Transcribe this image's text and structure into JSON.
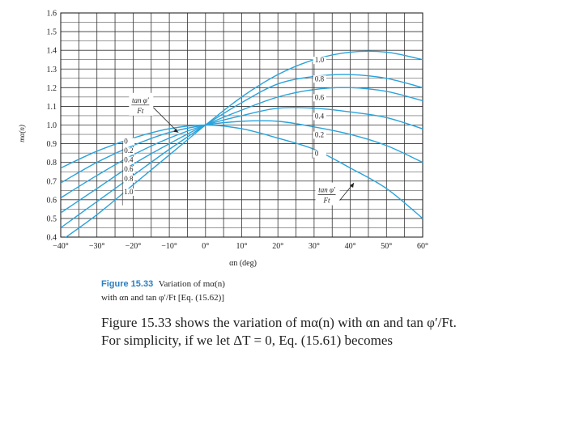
{
  "chart_data": {
    "type": "line",
    "xlabel": "αn (deg)",
    "ylabel": "mα(n)",
    "xlim": [
      -40,
      60
    ],
    "ylim": [
      0.4,
      1.6
    ],
    "x_ticks": [
      -40,
      -30,
      -20,
      -10,
      0,
      10,
      20,
      30,
      40,
      50,
      60
    ],
    "x_tick_labels": [
      "−40°",
      "−30°",
      "−20°",
      "−10°",
      "0°",
      "10°",
      "20°",
      "30°",
      "40°",
      "50°",
      "60°"
    ],
    "y_ticks": [
      0.4,
      0.5,
      0.6,
      0.7,
      0.8,
      0.9,
      1.0,
      1.1,
      1.2,
      1.3,
      1.4,
      1.5,
      1.6
    ],
    "y_tick_labels": [
      "0.4",
      "0.5",
      "0.6",
      "0.7",
      "0.8",
      "0.9",
      "1.0",
      "1.1",
      "1.2",
      "1.3",
      "1.4",
      "1.5",
      "1.6"
    ],
    "grid": true,
    "line_color": "#29a3dc",
    "x": [
      -40,
      -30,
      -20,
      -10,
      0,
      10,
      20,
      30,
      40,
      50,
      60
    ],
    "series": [
      {
        "name": "0",
        "values": [
          0.77,
          0.86,
          0.93,
          0.98,
          1.0,
          0.98,
          0.93,
          0.87,
          0.77,
          0.66,
          0.5
        ]
      },
      {
        "name": "0.2",
        "values": [
          0.69,
          0.8,
          0.89,
          0.96,
          1.0,
          1.02,
          1.02,
          0.99,
          0.95,
          0.89,
          0.8
        ]
      },
      {
        "name": "0.4",
        "values": [
          0.61,
          0.73,
          0.84,
          0.93,
          1.0,
          1.05,
          1.09,
          1.09,
          1.07,
          1.04,
          0.98
        ]
      },
      {
        "name": "0.6",
        "values": [
          0.53,
          0.66,
          0.79,
          0.9,
          1.0,
          1.08,
          1.15,
          1.19,
          1.2,
          1.18,
          1.13
        ]
      },
      {
        "name": "0.8",
        "values": [
          0.45,
          0.59,
          0.73,
          0.87,
          1.0,
          1.12,
          1.22,
          1.26,
          1.27,
          1.25,
          1.2
        ]
      },
      {
        "name": "1.0",
        "values": [
          0.38,
          0.52,
          0.68,
          0.84,
          1.0,
          1.15,
          1.27,
          1.35,
          1.39,
          1.39,
          1.35
        ]
      }
    ],
    "annotations": [
      {
        "text": "tan φ′",
        "sub": "Ft"
      },
      {
        "text": "tan φ′",
        "sub": "Ft"
      }
    ]
  },
  "caption": {
    "figure_number": "Figure 15.33",
    "text_line1": "Variation of mα(n)",
    "text_line2": "with αn and tan φ′/Ft [Eq. (15.62)]"
  },
  "body": {
    "line1": "Figure 15.33 shows the variation of mα(n) with αn and tan φ′/Ft.",
    "line2": "For simplicity, if we let ΔT = 0, Eq. (15.61) becomes"
  }
}
